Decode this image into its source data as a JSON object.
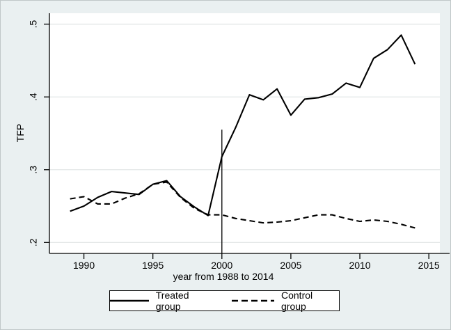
{
  "window": {
    "background": "#eaf0f1",
    "plot_background": "#ffffff",
    "frame_border": "#c0c7c8"
  },
  "chart_data": {
    "type": "line",
    "title": "",
    "xlabel": "year from 1988 to 2014",
    "ylabel": "TFP",
    "x": [
      1989,
      1990,
      1991,
      1992,
      1993,
      1994,
      1995,
      1996,
      1997,
      1998,
      1999,
      2000,
      2001,
      2002,
      2003,
      2004,
      2005,
      2006,
      2007,
      2008,
      2009,
      2010,
      2011,
      2012,
      2013,
      2014
    ],
    "series": [
      {
        "name": "Treated group",
        "style": "solid",
        "color": "#000000",
        "values": [
          0.243,
          0.25,
          0.262,
          0.27,
          0.268,
          0.266,
          0.28,
          0.285,
          0.263,
          0.249,
          0.237,
          0.318,
          0.358,
          0.403,
          0.396,
          0.411,
          0.375,
          0.397,
          0.399,
          0.404,
          0.419,
          0.413,
          0.453,
          0.465,
          0.485,
          0.445
        ]
      },
      {
        "name": "Control group",
        "style": "dashed",
        "color": "#000000",
        "values": [
          0.26,
          0.263,
          0.253,
          0.253,
          0.261,
          0.267,
          0.28,
          0.283,
          0.262,
          0.247,
          0.238,
          0.238,
          0.233,
          0.23,
          0.227,
          0.228,
          0.23,
          0.234,
          0.238,
          0.238,
          0.233,
          0.229,
          0.231,
          0.229,
          0.225,
          0.22
        ]
      }
    ],
    "xticks": [
      1990,
      1995,
      2000,
      2005,
      2010,
      2015
    ],
    "yticks": [
      ".2",
      ".3",
      ".4",
      ".5"
    ],
    "ytick_values": [
      0.2,
      0.3,
      0.4,
      0.5
    ],
    "xlim": [
      1987.5,
      2015.8
    ],
    "ylim": [
      0.185,
      0.515
    ],
    "grid": "horizontal",
    "gridline_color": "#e3e6e6",
    "axis_color": "#000000",
    "refline": {
      "x": 2000,
      "y_from": 0.185,
      "y_to": 0.355,
      "color": "#000000"
    },
    "legend": {
      "position": "bottom-center",
      "entries": [
        "Treated group",
        "Control group"
      ]
    }
  }
}
